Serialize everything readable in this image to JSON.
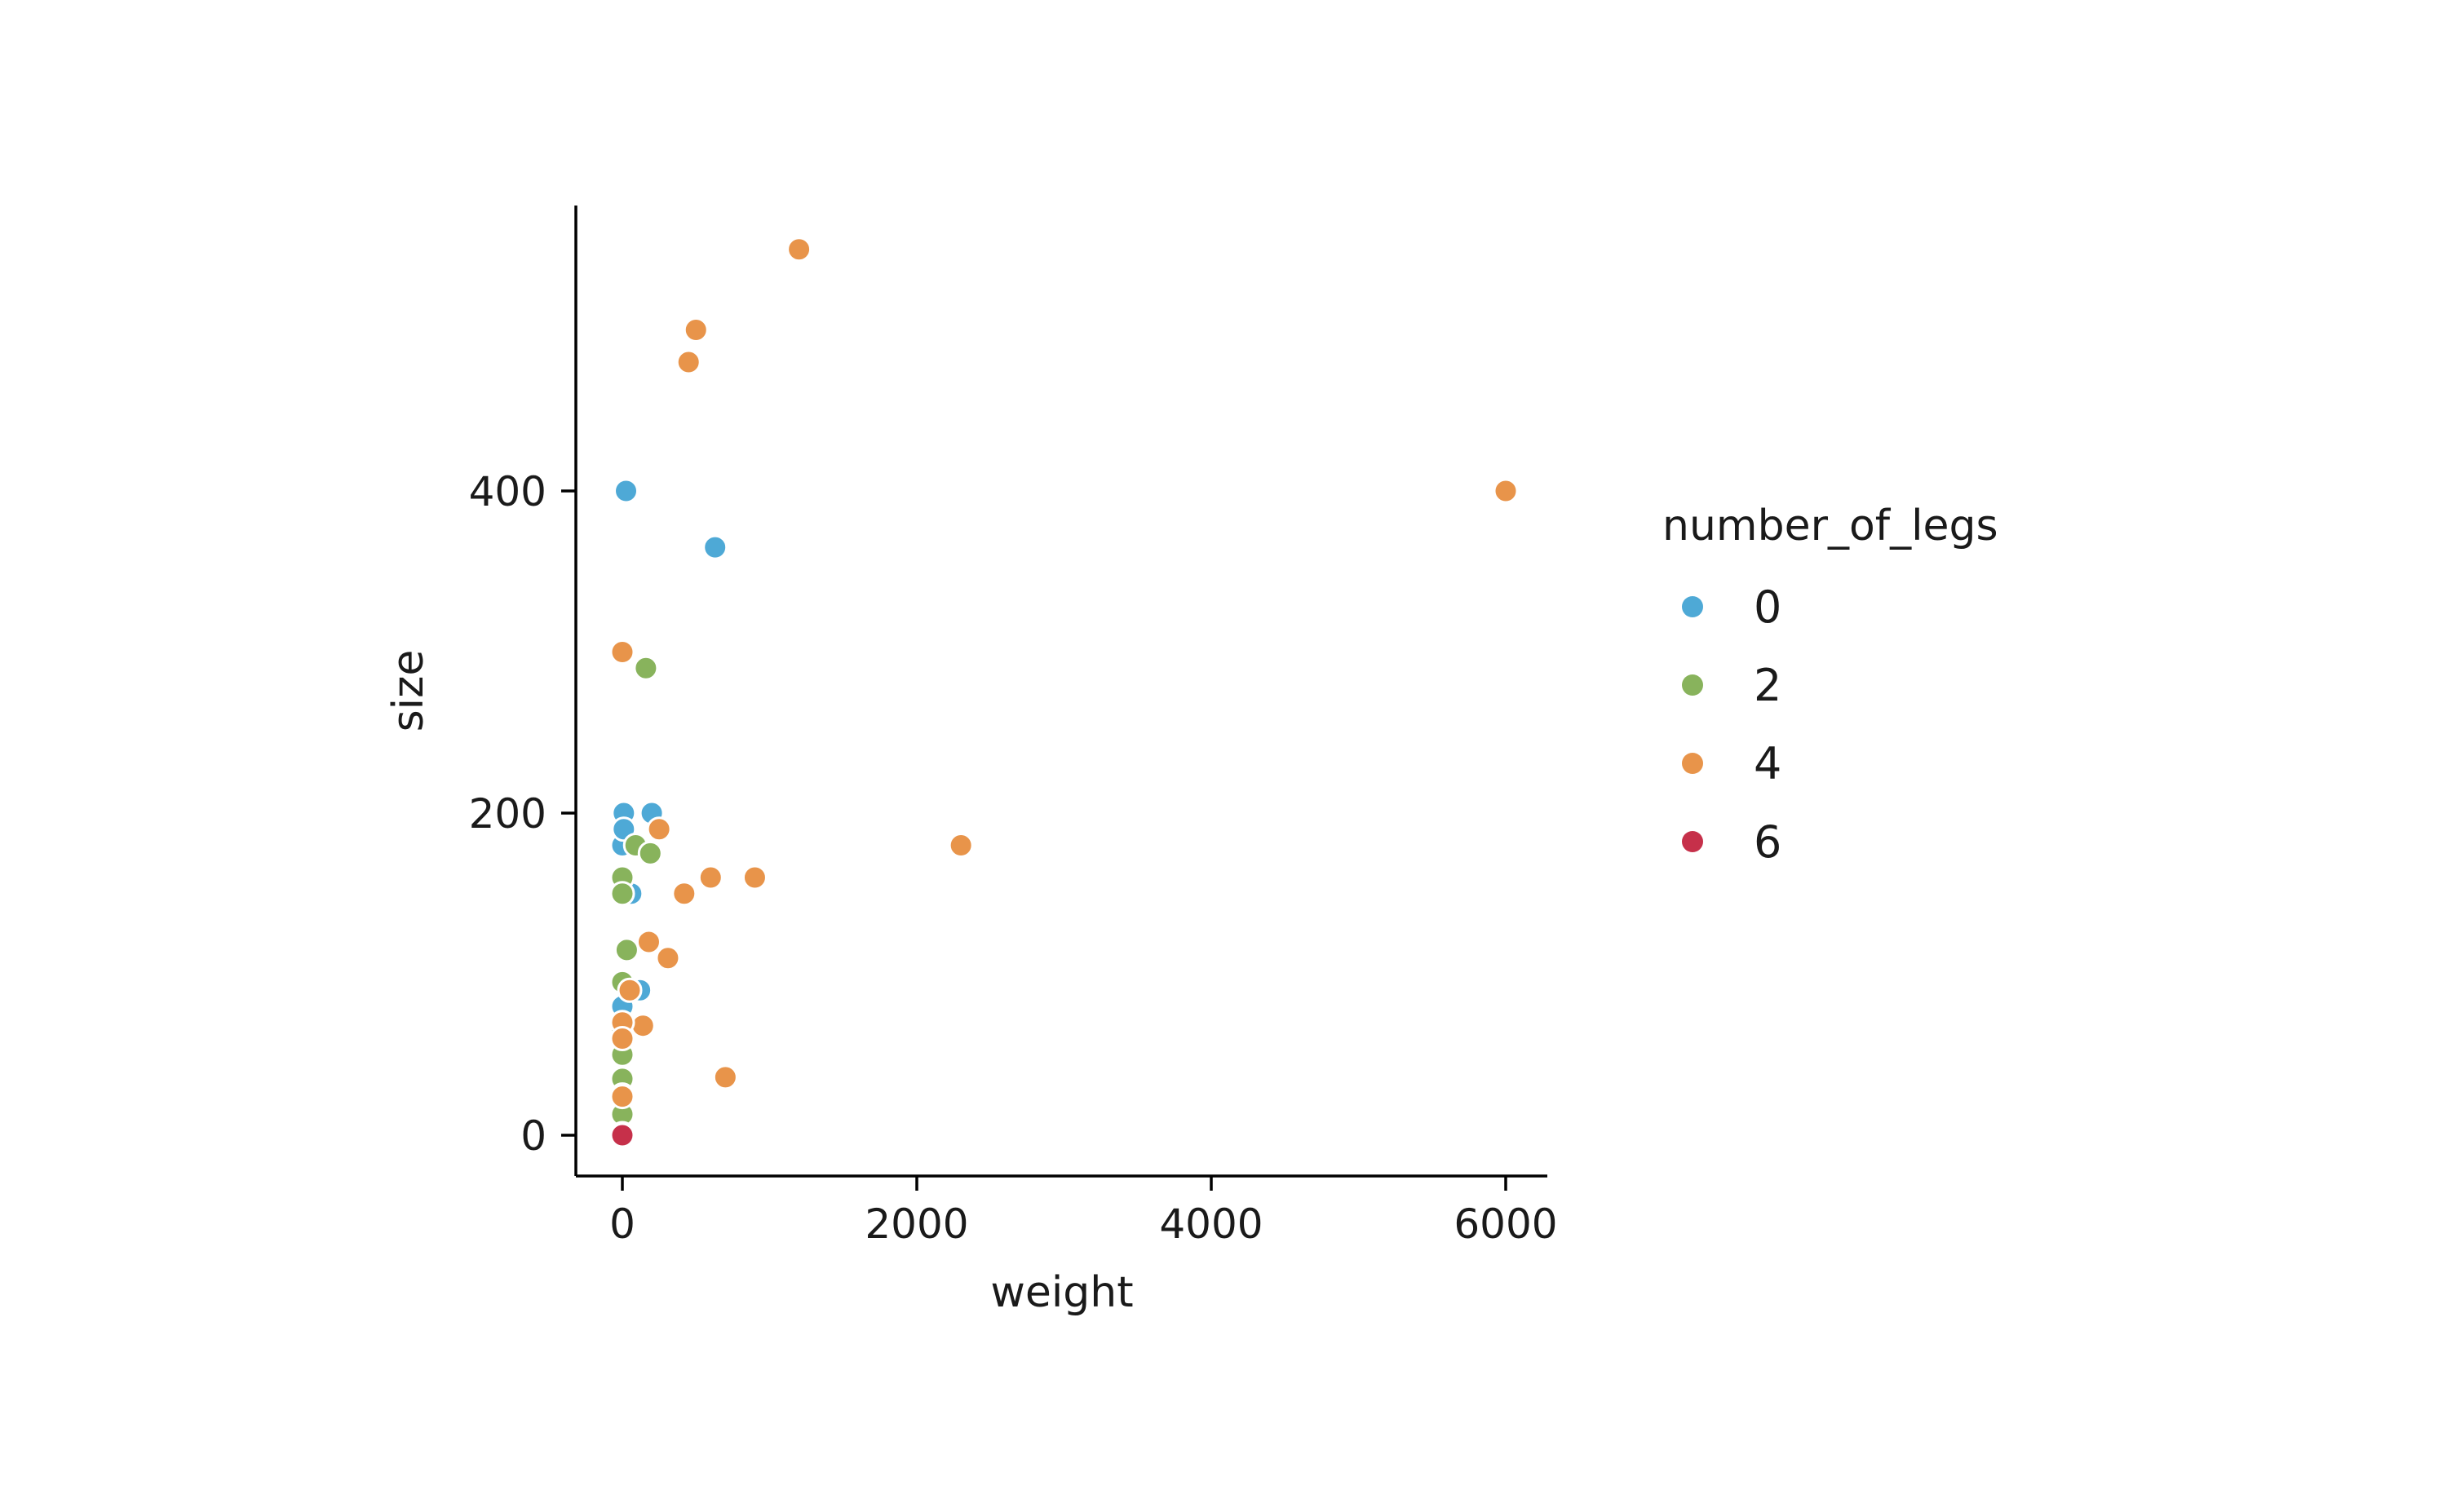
{
  "chart_data": {
    "type": "scatter",
    "title": "",
    "xlabel": "weight",
    "ylabel": "size",
    "xlim": [
      -300,
      6300
    ],
    "ylim": [
      -20,
      577
    ],
    "xticks": [
      0,
      2000,
      4000,
      6000
    ],
    "yticks": [
      0,
      200,
      400
    ],
    "grid": false,
    "legend": {
      "title": "number_of_legs",
      "placement": "right"
    },
    "series": [
      {
        "name": "0",
        "color": "#4ea9d6",
        "points": [
          [
            25,
            400
          ],
          [
            630,
            365
          ],
          [
            10,
            200
          ],
          [
            200,
            200
          ],
          [
            0,
            180
          ],
          [
            60,
            150
          ],
          [
            0,
            80
          ],
          [
            120,
            90
          ],
          [
            10,
            190
          ]
        ]
      },
      {
        "name": "2",
        "color": "#88b35c",
        "points": [
          [
            160,
            290
          ],
          [
            0,
            160
          ],
          [
            90,
            180
          ],
          [
            190,
            175
          ],
          [
            0,
            150
          ],
          [
            30,
            115
          ],
          [
            0,
            95
          ],
          [
            0,
            65
          ],
          [
            0,
            50
          ],
          [
            0,
            35
          ],
          [
            0,
            25
          ],
          [
            0,
            13
          ]
        ]
      },
      {
        "name": "4",
        "color": "#e8944a",
        "points": [
          [
            1200,
            550
          ],
          [
            500,
            500
          ],
          [
            450,
            480
          ],
          [
            6000,
            400
          ],
          [
            0,
            300
          ],
          [
            250,
            190
          ],
          [
            2300,
            180
          ],
          [
            600,
            160
          ],
          [
            900,
            160
          ],
          [
            420,
            150
          ],
          [
            180,
            120
          ],
          [
            310,
            110
          ],
          [
            50,
            90
          ],
          [
            140,
            68
          ],
          [
            0,
            70
          ],
          [
            0,
            60
          ],
          [
            700,
            36
          ],
          [
            0,
            24
          ]
        ]
      },
      {
        "name": "6",
        "color": "#c6304a",
        "points": [
          [
            0,
            1
          ],
          [
            0,
            0
          ]
        ]
      }
    ]
  }
}
